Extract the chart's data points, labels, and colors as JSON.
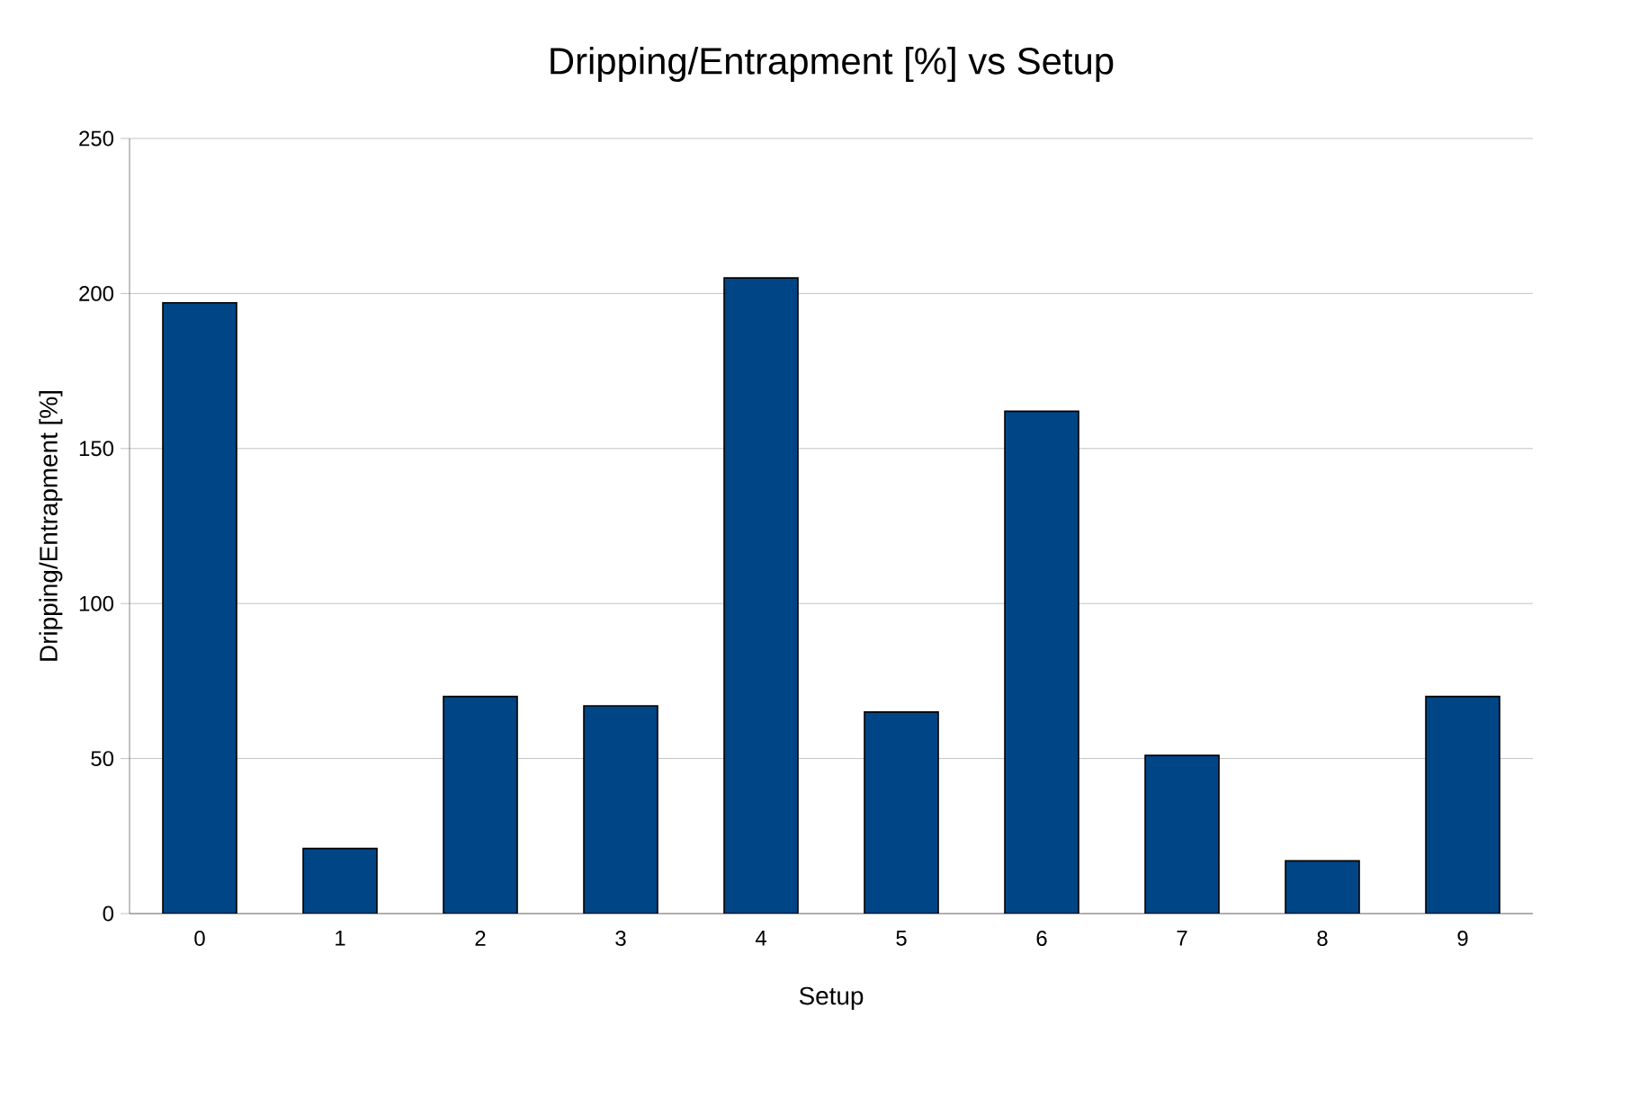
{
  "chart_data": {
    "type": "bar",
    "title": "Dripping/Entrapment [%] vs Setup",
    "xlabel": "Setup",
    "ylabel": "Dripping/Entrapment [%]",
    "categories": [
      "0",
      "1",
      "2",
      "3",
      "4",
      "5",
      "6",
      "7",
      "8",
      "9"
    ],
    "values": [
      197,
      21,
      70,
      67,
      205,
      65,
      162,
      51,
      17,
      70
    ],
    "color": "#004586",
    "ylim": [
      0,
      250
    ],
    "yticks": [
      0,
      50,
      100,
      150,
      200,
      250
    ],
    "grid": "y"
  }
}
